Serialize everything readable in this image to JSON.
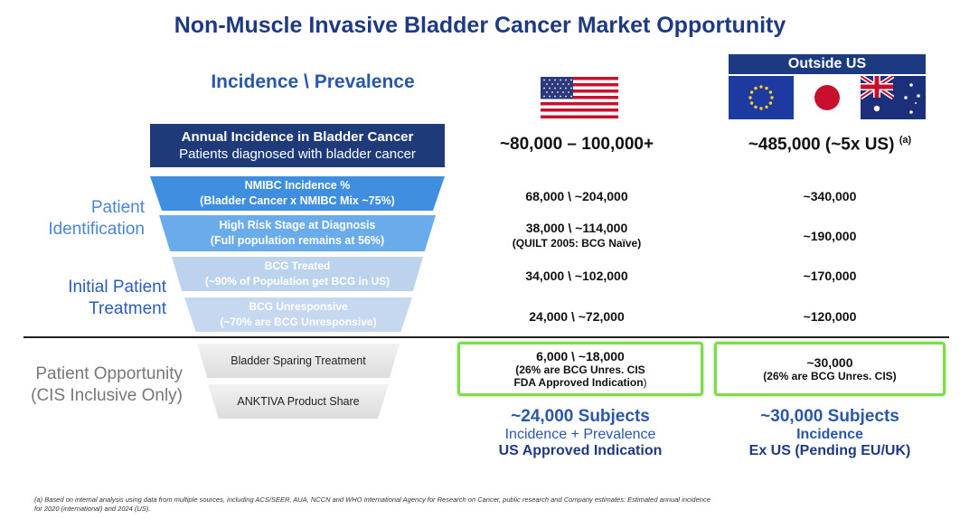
{
  "title": "Non-Muscle Invasive Bladder Cancer Market Opportunity",
  "incidence_heading": "Incidence \\ Prevalence",
  "outside_us_label": "Outside US",
  "side_labels": {
    "patient_identification_1": "Patient",
    "patient_identification_2": "Identification",
    "initial_treatment_1": "Initial Patient",
    "initial_treatment_2": "Treatment",
    "opportunity_1": "Patient Opportunity",
    "opportunity_2": "(CIS Inclusive Only)"
  },
  "funnel": [
    {
      "line1": "Annual Incidence in Bladder Cancer",
      "line2": "Patients diagnosed with bladder cancer"
    },
    {
      "line1": "NMIBC Incidence %",
      "line2": "(Bladder Cancer x NMIBC Mix ~75%)"
    },
    {
      "line1": "High Risk Stage at Diagnosis",
      "line2": "(Full population remains at 56%)"
    },
    {
      "line1": "BCG Treated",
      "line2": "(~90% of Population get BCG in US)"
    },
    {
      "line1": "BCG Unresponsive",
      "line2": "(~70% are BCG Unresponsive)"
    }
  ],
  "opportunity_bars": [
    "Bladder Sparing Treatment",
    "ANKTIVA Product Share"
  ],
  "us_values": {
    "row1": "~80,000 – 100,000+",
    "row2": "68,000 \\ ~204,000",
    "row3": "38,000 \\ ~114,000",
    "row3_note": "(QUILT 2005: BCG Naïve)",
    "row4": "34,000 \\ ~102,000",
    "row5": "24,000 \\ ~72,000",
    "box_line1": "6,000 \\ ~18,000",
    "box_line2": "(26% are BCG Unres. CIS",
    "box_line3": "FDA Approved Indication",
    "box_line3_end": ")"
  },
  "ex_values": {
    "row1": "~485,000 (~5x US)",
    "row1_sup": "(a)",
    "row2": "~340,000",
    "row3": "~190,000",
    "row4": "~170,000",
    "row5": "~120,000",
    "box_line1": "~30,000",
    "box_line2": "(26% are BCG Unres. CIS)"
  },
  "us_summary": {
    "head": "~24,000 Subjects",
    "line": "Incidence + Prevalence",
    "bold": "US Approved Indication"
  },
  "ex_summary": {
    "head": "~30,000 Subjects",
    "line": "Incidence",
    "bold": "Ex US (Pending EU/UK)"
  },
  "footnote_1": "(a)  Based on internal analysis using data from multiple sources, including ACS/SEER, AUA, NCCN and WHO International Agency for Research on Cancer, public research and Company estimates: Estimated annual incidence",
  "footnote_2": "for 2020 (international) and 2024 (US).",
  "colors": {
    "navy": "#1e3a78",
    "blue": "#3f8ee0",
    "green_border": "#7edb4a"
  }
}
